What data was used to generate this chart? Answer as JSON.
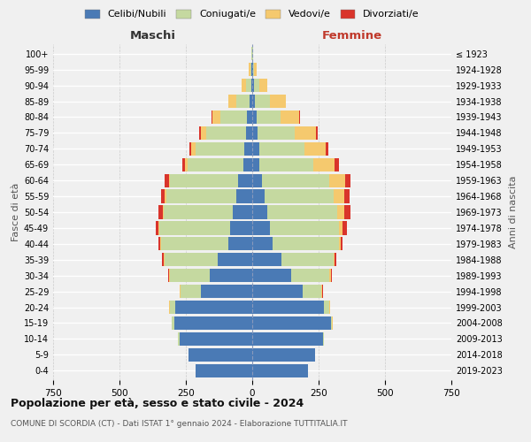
{
  "age_groups": [
    "0-4",
    "5-9",
    "10-14",
    "15-19",
    "20-24",
    "25-29",
    "30-34",
    "35-39",
    "40-44",
    "45-49",
    "50-54",
    "55-59",
    "60-64",
    "65-69",
    "70-74",
    "75-79",
    "80-84",
    "85-89",
    "90-94",
    "95-99",
    "100+"
  ],
  "birth_years": [
    "2019-2023",
    "2014-2018",
    "2009-2013",
    "2004-2008",
    "1999-2003",
    "1994-1998",
    "1989-1993",
    "1984-1988",
    "1979-1983",
    "1974-1978",
    "1969-1973",
    "1964-1968",
    "1959-1963",
    "1954-1958",
    "1949-1953",
    "1944-1948",
    "1939-1943",
    "1934-1938",
    "1929-1933",
    "1924-1928",
    "≤ 1923"
  ],
  "maschi": {
    "celibi": [
      215,
      240,
      275,
      295,
      290,
      195,
      160,
      130,
      90,
      85,
      75,
      60,
      55,
      35,
      30,
      25,
      20,
      10,
      5,
      2,
      0
    ],
    "coniugati": [
      0,
      0,
      5,
      10,
      20,
      75,
      150,
      200,
      255,
      265,
      260,
      265,
      255,
      210,
      185,
      150,
      100,
      50,
      20,
      5,
      2
    ],
    "vedovi": [
      0,
      0,
      0,
      0,
      5,
      2,
      2,
      2,
      2,
      3,
      3,
      5,
      5,
      10,
      15,
      20,
      30,
      30,
      15,
      5,
      0
    ],
    "divorziati": [
      0,
      0,
      0,
      0,
      0,
      2,
      5,
      8,
      8,
      10,
      15,
      15,
      15,
      10,
      8,
      5,
      3,
      0,
      0,
      0,
      0
    ]
  },
  "femmine": {
    "nubili": [
      210,
      235,
      265,
      295,
      270,
      190,
      145,
      110,
      75,
      65,
      55,
      45,
      35,
      25,
      25,
      20,
      15,
      10,
      5,
      2,
      0
    ],
    "coniugate": [
      0,
      0,
      5,
      5,
      20,
      70,
      145,
      195,
      250,
      260,
      265,
      260,
      255,
      205,
      170,
      140,
      90,
      55,
      20,
      5,
      2
    ],
    "vedove": [
      0,
      0,
      0,
      2,
      3,
      3,
      5,
      5,
      8,
      15,
      25,
      40,
      60,
      80,
      80,
      80,
      70,
      60,
      30,
      10,
      2
    ],
    "divorziate": [
      0,
      0,
      0,
      0,
      0,
      2,
      5,
      8,
      8,
      15,
      25,
      20,
      20,
      15,
      12,
      8,
      5,
      2,
      0,
      0,
      0
    ]
  },
  "colors": {
    "celibi": "#4a7ab5",
    "coniugati": "#c5d9a0",
    "vedovi": "#f5c96e",
    "divorziati": "#d9342b"
  },
  "xlim": 750,
  "title": "Popolazione per età, sesso e stato civile - 2024",
  "subtitle": "COMUNE DI SCORDIA (CT) - Dati ISTAT 1° gennaio 2024 - Elaborazione TUTTITALIA.IT",
  "ylabel_left": "Fasce di età",
  "ylabel_right": "Anni di nascita",
  "xlabel_maschi": "Maschi",
  "xlabel_femmine": "Femmine",
  "legend_labels": [
    "Celibi/Nubili",
    "Coniugati/e",
    "Vedovi/e",
    "Divorziati/e"
  ],
  "background_color": "#f0f0f0"
}
